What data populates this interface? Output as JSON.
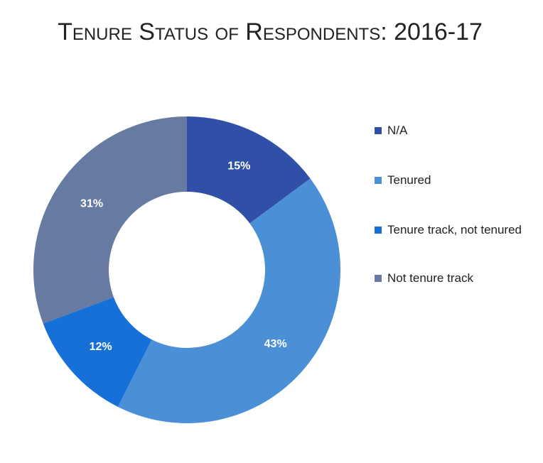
{
  "chart_data": {
    "type": "donut",
    "title": "Tenure Status of Respondents: 2016-17",
    "categories": [
      "N/A",
      "Tenured",
      "Tenure track, not tenured",
      "Not tenure track"
    ],
    "values": [
      15,
      43,
      12,
      31
    ],
    "value_labels": [
      "15%",
      "43%",
      "12%",
      "31%"
    ],
    "colors": [
      "#3050a8",
      "#4b8fd6",
      "#1670d8",
      "#667aa2"
    ],
    "legend": "right"
  }
}
